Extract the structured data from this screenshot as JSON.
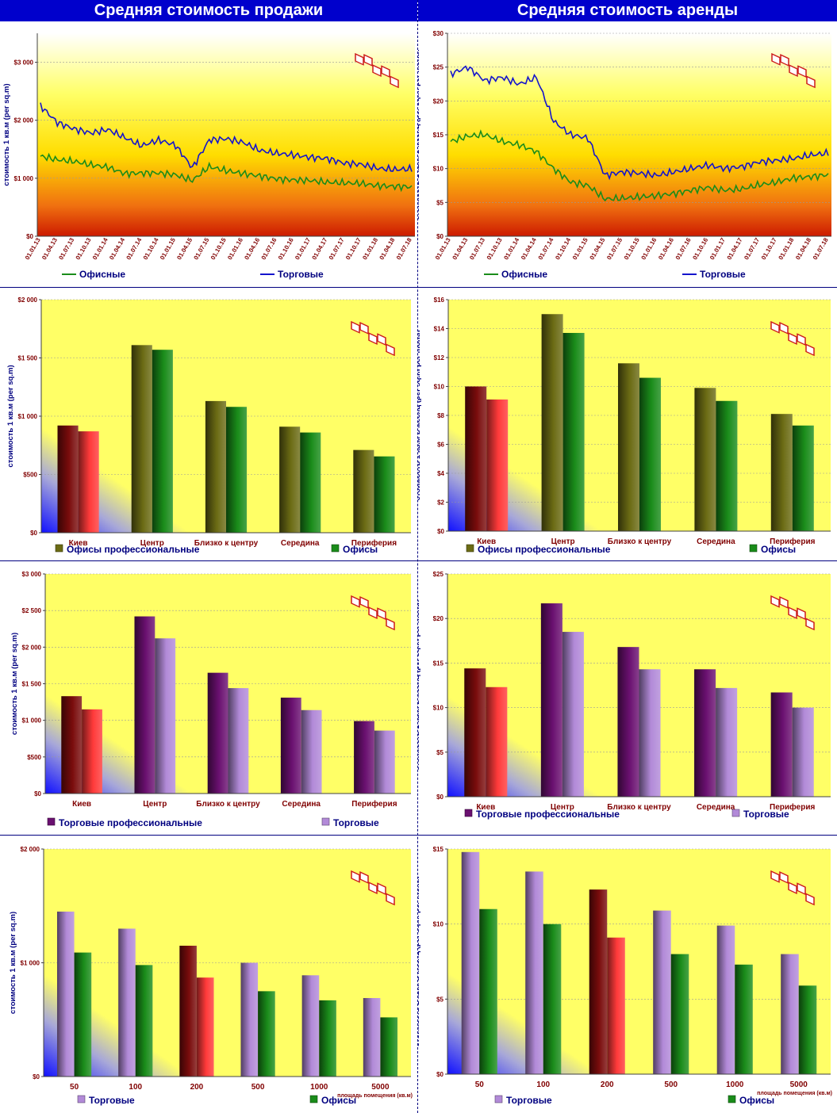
{
  "header": {
    "left_title": "Средняя стоимость продажи",
    "right_title": "Средняя стоимость аренды"
  },
  "colors": {
    "header_bg": "#0000cc",
    "offices": "#1a8c1a",
    "retail_line": "#1414cc",
    "offices_prof": "#6b6b14",
    "kiev_dark": "#7a0c0c",
    "kiev_light": "#ff3a3a",
    "retail_prof": "#6a1070",
    "retail": "#b28ad8",
    "axis_text": "#800000",
    "ylabel_text": "#000080"
  },
  "chart_data": [
    {
      "id": "sale-line",
      "type": "line",
      "ylabel": "стоимость 1 кв.м (per sq.m)",
      "ylim": [
        0,
        3500
      ],
      "yticks": [
        0,
        1000,
        2000,
        3000
      ],
      "ytick_labels": [
        "$0",
        "$1 000",
        "$2 000",
        "$3 000"
      ],
      "x_labels": [
        "01.01.13",
        "01.04.13",
        "01.07.13",
        "01.10.13",
        "01.01.14",
        "01.04.14",
        "01.07.14",
        "01.10.14",
        "01.01.15",
        "01.04.15",
        "01.07.15",
        "01.10.15",
        "01.01.16",
        "01.04.16",
        "01.07.16",
        "01.10.16",
        "01.01.17",
        "01.04.17",
        "01.07.17",
        "01.10.17",
        "01.01.18",
        "01.04.18",
        "01.07.18"
      ],
      "legend": [
        "Офисные",
        "Торговые"
      ],
      "series": [
        {
          "name": "Офисные",
          "color": "offices",
          "values": [
            1380,
            1320,
            1290,
            1230,
            1190,
            1080,
            1090,
            1090,
            1060,
            960,
            1200,
            1130,
            1080,
            1040,
            990,
            970,
            960,
            930,
            920,
            910,
            870,
            860,
            850
          ]
        },
        {
          "name": "Торговые",
          "color": "retail_line",
          "values": [
            2250,
            1960,
            1850,
            1780,
            1840,
            1700,
            1560,
            1660,
            1570,
            1180,
            1660,
            1680,
            1620,
            1480,
            1430,
            1400,
            1360,
            1340,
            1260,
            1240,
            1170,
            1150,
            1160
          ]
        }
      ]
    },
    {
      "id": "rent-line",
      "type": "line",
      "ylabel": "стоимость 1 кв.м в месяц (per sq.m per month",
      "ylim": [
        0,
        30
      ],
      "yticks": [
        0,
        5,
        10,
        15,
        20,
        25,
        30
      ],
      "ytick_labels": [
        "$0",
        "$5",
        "$10",
        "$15",
        "$20",
        "$25",
        "$30"
      ],
      "x_labels": [
        "01.01.13",
        "01.04.13",
        "01.07.13",
        "01.10.13",
        "01.01.14",
        "01.04.14",
        "01.07.14",
        "01.10.14",
        "01.01.15",
        "01.04.15",
        "01.07.15",
        "01.10.15",
        "01.01.16",
        "01.04.16",
        "01.07.16",
        "01.10.16",
        "01.01.17",
        "01.04.17",
        "01.07.17",
        "01.10.17",
        "01.01.18",
        "01.04.18",
        "01.07.18"
      ],
      "legend": [
        "Офисные",
        "Торговые"
      ],
      "series": [
        {
          "name": "Офисные",
          "color": "offices",
          "values": [
            14.0,
            14.8,
            15.0,
            14.0,
            13.5,
            12.5,
            10.0,
            8.0,
            7.5,
            5.5,
            5.6,
            5.8,
            6.0,
            6.3,
            6.8,
            7.2,
            6.8,
            7.0,
            7.6,
            8.0,
            8.6,
            8.8,
            9.1
          ]
        },
        {
          "name": "Торговые",
          "color": "retail_line",
          "values": [
            24.0,
            25.0,
            23.0,
            23.5,
            22.5,
            23.5,
            17.0,
            15.0,
            14.5,
            9.0,
            9.5,
            9.3,
            9.0,
            9.5,
            10.0,
            10.5,
            10.0,
            10.3,
            11.0,
            11.2,
            11.5,
            12.0,
            12.3
          ]
        }
      ]
    },
    {
      "id": "sale-offices-bar",
      "type": "bar",
      "ylabel": "стоимость 1 кв.м (per sq.m)",
      "ylim": [
        0,
        2000
      ],
      "yticks": [
        0,
        500,
        1000,
        1500,
        2000
      ],
      "ytick_labels": [
        "$0",
        "$500",
        "$1 000",
        "$1 500",
        "$2 000"
      ],
      "categories": [
        "Киев",
        "Центр",
        "Близко к центру",
        "Середина",
        "Периферия"
      ],
      "legend": [
        "Офисы профессиональные",
        "Офисы"
      ],
      "series": [
        {
          "name": "Офисы профессиональные",
          "color": "offices_prof",
          "values": [
            920,
            1610,
            1130,
            910,
            710
          ]
        },
        {
          "name": "Офисы",
          "color": "offices",
          "values": [
            870,
            1570,
            1080,
            860,
            655
          ]
        }
      ]
    },
    {
      "id": "rent-offices-bar",
      "type": "bar",
      "ylabel": "стоимость 1 кв.м в месяц (per sq.m per month",
      "ylim": [
        0,
        16
      ],
      "yticks": [
        0,
        2,
        4,
        6,
        8,
        10,
        12,
        14,
        16
      ],
      "ytick_labels": [
        "$0",
        "$2",
        "$4",
        "$6",
        "$8",
        "$10",
        "$12",
        "$14",
        "$16"
      ],
      "categories": [
        "Киев",
        "Центр",
        "Близко к центру",
        "Середина",
        "Периферия"
      ],
      "legend": [
        "Офисы профессиональные",
        "Офисы"
      ],
      "series": [
        {
          "name": "Офисы профессиональные",
          "color": "offices_prof",
          "values": [
            10.0,
            15.0,
            11.6,
            9.9,
            8.1
          ]
        },
        {
          "name": "Офисы",
          "color": "offices",
          "values": [
            9.1,
            13.7,
            10.6,
            9.0,
            7.3
          ]
        }
      ]
    },
    {
      "id": "sale-retail-bar",
      "type": "bar",
      "ylabel": "стоимость 1 кв.м (per sq.m)",
      "ylim": [
        0,
        3000
      ],
      "yticks": [
        0,
        500,
        1000,
        1500,
        2000,
        2500,
        3000
      ],
      "ytick_labels": [
        "$0",
        "$500",
        "$1 000",
        "$1 500",
        "$2 000",
        "$2 500",
        "$3 000"
      ],
      "categories": [
        "Киев",
        "Центр",
        "Близко к центру",
        "Середина",
        "Периферия"
      ],
      "legend": [
        "Торговые профессиональные",
        "Торговые"
      ],
      "series": [
        {
          "name": "Торговые профессиональные",
          "color": "retail_prof",
          "values": [
            1330,
            2420,
            1650,
            1310,
            990
          ]
        },
        {
          "name": "Торговые",
          "color": "retail",
          "values": [
            1150,
            2120,
            1440,
            1140,
            860
          ]
        }
      ]
    },
    {
      "id": "rent-retail-bar",
      "type": "bar",
      "ylabel": "стоимость 1 кв.м в месяц (per sq.m per month",
      "ylim": [
        0,
        25
      ],
      "yticks": [
        0,
        5,
        10,
        15,
        20,
        25
      ],
      "ytick_labels": [
        "$0",
        "$5",
        "$10",
        "$15",
        "$20",
        "$25"
      ],
      "categories": [
        "Киев",
        "Центр",
        "Близко к центру",
        "Середина",
        "Периферия"
      ],
      "legend": [
        "Торговые профессиональные",
        "Торговые"
      ],
      "series": [
        {
          "name": "Торговые профессиональные",
          "color": "retail_prof",
          "values": [
            14.4,
            21.7,
            16.8,
            14.3,
            11.7
          ]
        },
        {
          "name": "Торговые",
          "color": "retail",
          "values": [
            12.3,
            18.5,
            14.3,
            12.2,
            10.0
          ]
        }
      ]
    },
    {
      "id": "sale-area-bar",
      "type": "bar",
      "ylabel": "стоимость 1 кв.м (per sq.m)",
      "ylim": [
        0,
        2000
      ],
      "yticks": [
        0,
        1000,
        2000
      ],
      "ytick_labels": [
        "$0",
        "$1 000",
        "$2 000"
      ],
      "categories": [
        "50",
        "100",
        "200",
        "500",
        "1000",
        "5000"
      ],
      "xlabel": "площадь помещения (кв.м)",
      "highlight_category": "200",
      "legend": [
        "Торговые",
        "Офисы"
      ],
      "series": [
        {
          "name": "Торговые",
          "color": "retail",
          "values": [
            1450,
            1300,
            1150,
            1000,
            890,
            690
          ]
        },
        {
          "name": "Офисы",
          "color": "offices",
          "values": [
            1090,
            980,
            870,
            750,
            670,
            520
          ]
        }
      ]
    },
    {
      "id": "rent-area-bar",
      "type": "bar",
      "ylabel": "стоимость 1 кв.м в месяц (per sq.m per month",
      "ylim": [
        0,
        15
      ],
      "yticks": [
        0,
        5,
        10,
        15
      ],
      "ytick_labels": [
        "$0",
        "$5",
        "$10",
        "$15"
      ],
      "categories": [
        "50",
        "100",
        "200",
        "500",
        "1000",
        "5000"
      ],
      "xlabel": "площадь помещения (кв.м)",
      "highlight_category": "200",
      "legend": [
        "Торговые",
        "Офисы"
      ],
      "series": [
        {
          "name": "Торговые",
          "color": "retail",
          "values": [
            14.8,
            13.5,
            12.3,
            10.9,
            9.9,
            8.0
          ]
        },
        {
          "name": "Офисы",
          "color": "offices",
          "values": [
            11.0,
            10.0,
            9.1,
            8.0,
            7.3,
            5.9
          ]
        }
      ]
    }
  ]
}
